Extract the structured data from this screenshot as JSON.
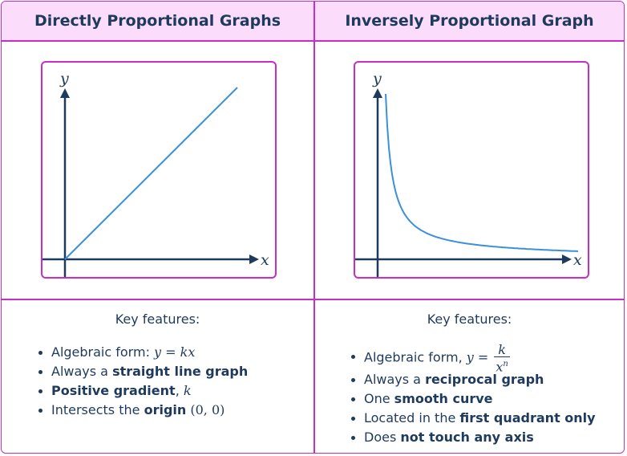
{
  "left": {
    "header": "Directly Proportional Graphs",
    "axis_x": "x",
    "axis_y": "y",
    "key_title": "Key features:",
    "f1_text": "Algebraic form: ",
    "f1_math": "y = kx",
    "f2_text": "Always a ",
    "f2_bold": "straight line graph",
    "f3_bold": "Positive gradient",
    "f3_text": ", ",
    "f3_math": "k",
    "f4_text": "Intersects the ",
    "f4_bold": "origin",
    "f4_math": "(0, 0)"
  },
  "right": {
    "header": "Inversely Proportional Graph",
    "axis_x": "x",
    "axis_y": "y",
    "key_title": "Key features:",
    "f1_text": "Algebraic form, ",
    "f1_math": "y = ",
    "f1_num": "k",
    "f1_den": "x",
    "f1_exp": "n",
    "f2_text": "Always a ",
    "f2_bold": "reciprocal graph",
    "f3_text": "One ",
    "f3_bold": "smooth curve",
    "f4_text": "Located in the ",
    "f4_bold": "first quadrant only",
    "f5_text": "Does ",
    "f5_bold": "not touch any axis"
  },
  "colors": {
    "border": "#c62ec6",
    "header_bg": "#fbdcfb",
    "text": "#1e3a5c",
    "curve": "#3b8fdb"
  }
}
